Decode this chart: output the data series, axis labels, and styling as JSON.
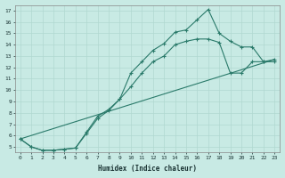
{
  "title": "",
  "xlabel": "Humidex (Indice chaleur)",
  "ylabel": "",
  "bg_color": "#c8eae4",
  "grid_color": "#b0d8d0",
  "line_color": "#2a7a6a",
  "xlim": [
    -0.5,
    23.5
  ],
  "ylim": [
    4.5,
    17.5
  ],
  "xticks": [
    0,
    1,
    2,
    3,
    4,
    5,
    6,
    7,
    8,
    9,
    10,
    11,
    12,
    13,
    14,
    15,
    16,
    17,
    18,
    19,
    20,
    21,
    22,
    23
  ],
  "yticks": [
    5,
    6,
    7,
    8,
    9,
    10,
    11,
    12,
    13,
    14,
    15,
    16,
    17
  ],
  "line1_x": [
    0,
    1,
    2,
    3,
    4,
    5,
    6,
    7,
    8,
    9,
    10,
    11,
    12,
    13,
    14,
    15,
    16,
    17,
    18,
    19,
    20,
    21,
    22,
    23
  ],
  "line1_y": [
    5.7,
    5.0,
    4.7,
    4.7,
    4.8,
    4.9,
    6.3,
    7.7,
    8.3,
    9.2,
    11.5,
    12.5,
    13.5,
    14.1,
    15.1,
    15.3,
    16.2,
    17.1,
    15.0,
    14.3,
    13.8,
    13.8,
    12.5,
    12.5
  ],
  "line2_x": [
    0,
    1,
    2,
    3,
    4,
    5,
    6,
    7,
    8,
    9,
    10,
    11,
    12,
    13,
    14,
    15,
    16,
    17,
    18,
    19,
    20,
    21,
    22,
    23
  ],
  "line2_y": [
    5.7,
    5.0,
    4.7,
    4.7,
    4.8,
    4.9,
    6.2,
    7.5,
    8.2,
    9.2,
    10.3,
    11.5,
    12.5,
    13.0,
    14.0,
    14.3,
    14.5,
    14.5,
    14.2,
    11.5,
    11.5,
    12.5,
    12.5,
    12.7
  ],
  "line3_x": [
    0,
    23
  ],
  "line3_y": [
    5.7,
    12.7
  ]
}
